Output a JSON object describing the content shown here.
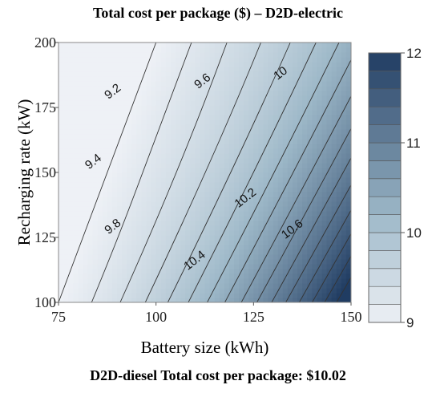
{
  "chart_data": {
    "type": "contour",
    "title": "Total cost per package ($) – D2D-electric",
    "xlabel": "Battery size (kWh)",
    "ylabel": "Recharging rate (kW)",
    "xlim": [
      75,
      150
    ],
    "ylim": [
      100,
      200
    ],
    "x_ticks": [
      "75",
      "100",
      "125",
      "150"
    ],
    "y_ticks": [
      "100",
      "125",
      "150",
      "175",
      "200"
    ],
    "contour_levels": [
      9.0,
      9.2,
      9.4,
      9.6,
      9.8,
      10.0,
      10.2,
      10.4,
      10.6,
      10.8,
      11.0,
      11.2,
      11.4,
      11.6,
      11.8,
      12.0
    ],
    "contour_labels": [
      {
        "text": "9.2",
        "x": 89,
        "y": 181
      },
      {
        "text": "9.4",
        "x": 84,
        "y": 154
      },
      {
        "text": "9.6",
        "x": 112,
        "y": 185
      },
      {
        "text": "9.8",
        "x": 89,
        "y": 129
      },
      {
        "text": "10",
        "x": 132,
        "y": 188
      },
      {
        "text": "10.2",
        "x": 123,
        "y": 140
      },
      {
        "text": "10.4",
        "x": 110,
        "y": 116
      },
      {
        "text": "10.6",
        "x": 135,
        "y": 128
      }
    ],
    "colorbar": {
      "min": 9,
      "max": 12,
      "ticks": [
        "9",
        "10",
        "11",
        "12"
      ],
      "color_low": "#eef1f6",
      "color_mid": "#9db8c8",
      "color_high": "#203c62"
    },
    "grid": false
  },
  "footer": {
    "text": "D2D-diesel Total cost per package: $10.02"
  }
}
